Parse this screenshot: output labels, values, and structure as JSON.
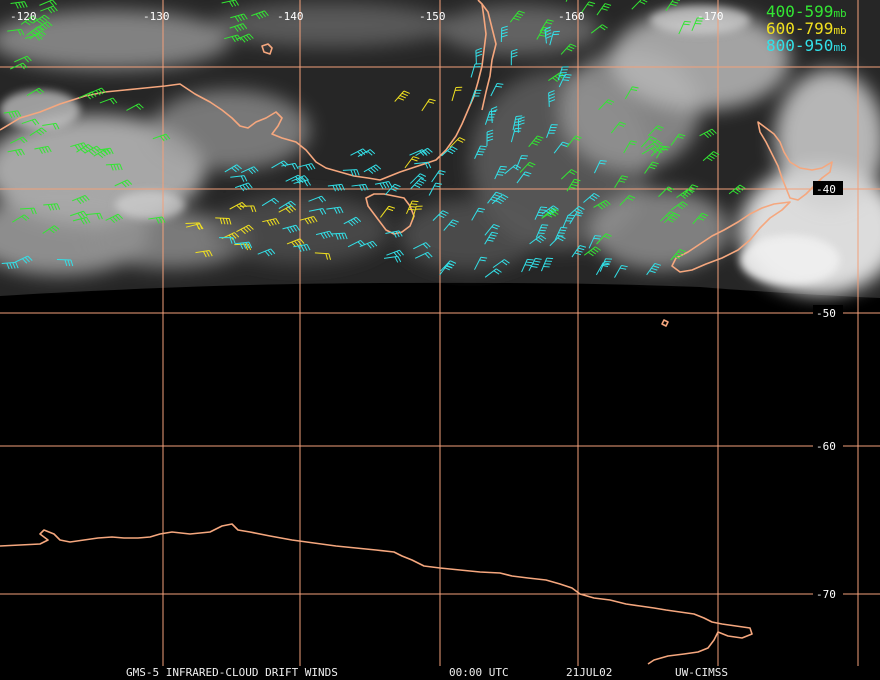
{
  "colors": {
    "grid": "#f2a07a",
    "coastline": "#f5a77e",
    "level_400_599": "#33e633",
    "level_600_799": "#f0e020",
    "level_800_950": "#33e0e8"
  },
  "map": {
    "longitude_labels": [
      "-120",
      "-130",
      "-140",
      "-150",
      "-160",
      "-170"
    ],
    "latitude_labels": [
      "-40",
      "-50",
      "-60",
      "-70"
    ],
    "features": [
      "australia-coastline",
      "tasmania-coastline",
      "new-zealand-coastline",
      "antarctica-coastline",
      "cloud-imagery",
      "wind-barbs"
    ]
  },
  "legend": {
    "items": [
      {
        "label": "400-599",
        "unit": "mb",
        "color": "#33e633"
      },
      {
        "label": "600-799",
        "unit": "mb",
        "color": "#f0e020"
      },
      {
        "label": "800-950",
        "unit": "mb",
        "color": "#33e0e8"
      }
    ]
  },
  "caption": {
    "product": "GMS-5 INFRARED-CLOUD DRIFT WINDS",
    "time": "00:00 UTC",
    "date": "21JUL02",
    "source": "UW-CIMSS"
  }
}
